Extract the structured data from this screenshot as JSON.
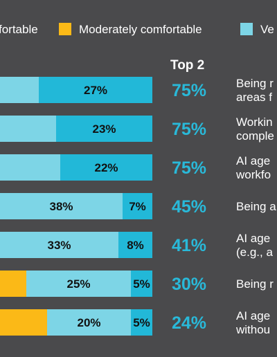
{
  "colors": {
    "background": "#4a4a4c",
    "moderately_comfortable": "#fbb917",
    "very_light": "#7dd5e6",
    "very_dark": "#22b8d8",
    "top2_text": "#29b9d9"
  },
  "legend": [
    {
      "label": "fortable",
      "color": "#4a4a4c",
      "swatch": false
    },
    {
      "label": "Moderately comfortable",
      "color": "#fbb917",
      "swatch": true
    },
    {
      "label": "Ve",
      "color": "#7dd5e6",
      "swatch": true
    }
  ],
  "chart_data": {
    "type": "bar",
    "orientation": "horizontal",
    "stacked": true,
    "top2_header": "Top 2",
    "rows": [
      {
        "moderately_comfortable": null,
        "light": null,
        "dark": "27%",
        "top2": "75%",
        "text": [
          "Being r",
          "areas f"
        ]
      },
      {
        "moderately_comfortable": null,
        "light": null,
        "dark": "23%",
        "top2": "75%",
        "text": [
          "Workin",
          "comple"
        ]
      },
      {
        "moderately_comfortable": null,
        "light": null,
        "dark": "22%",
        "top2": "75%",
        "text": [
          "AI age",
          "workfo"
        ]
      },
      {
        "moderately_comfortable": null,
        "light": "38%",
        "dark": "7%",
        "top2": "45%",
        "text": [
          "Being a"
        ]
      },
      {
        "moderately_comfortable": null,
        "light": "33%",
        "dark": "8%",
        "top2": "41%",
        "text": [
          "AI age",
          "(e.g., a"
        ]
      },
      {
        "moderately_comfortable": "",
        "light": "25%",
        "dark": "5%",
        "top2": "30%",
        "text": [
          "Being r"
        ]
      },
      {
        "moderately_comfortable": "",
        "light": "20%",
        "dark": "5%",
        "top2": "24%",
        "text": [
          "AI age",
          "withou"
        ]
      }
    ]
  }
}
